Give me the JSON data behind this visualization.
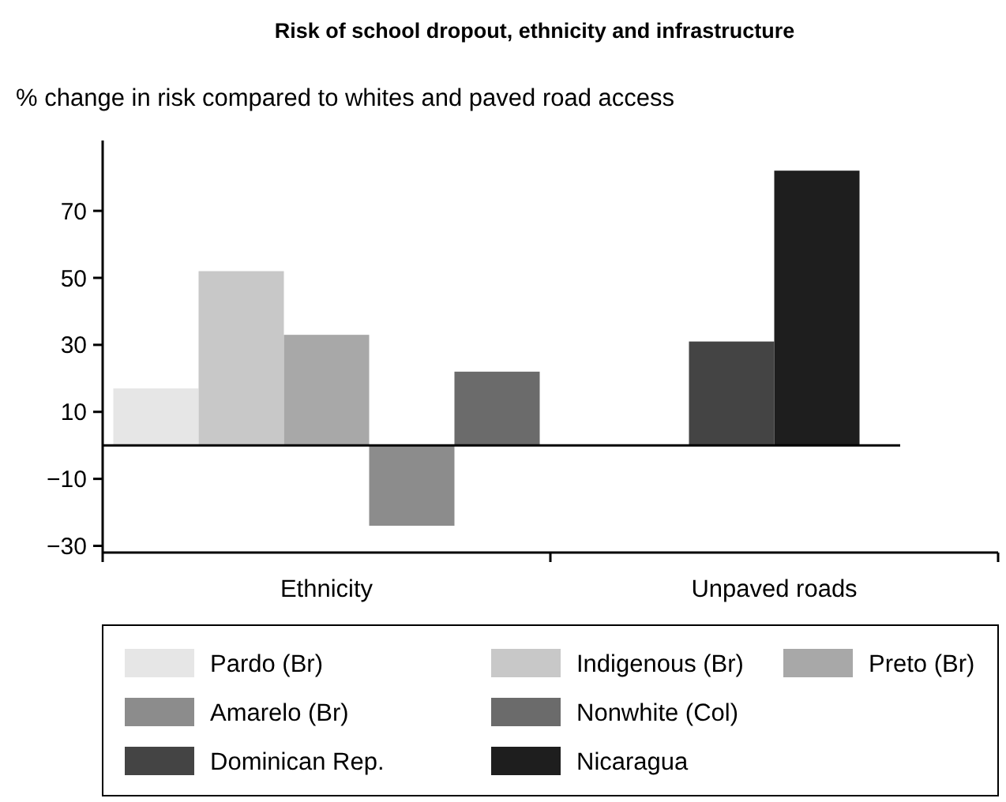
{
  "chart_data": {
    "type": "bar",
    "title": "Risk of school dropout, ethnicity and infrastructure",
    "ylabel": "% change in risk compared to whites and paved road access",
    "categories": [
      "Ethnicity",
      "Unpaved roads"
    ],
    "series": [
      {
        "name": "Pardo (Br)",
        "color": "#e6e6e6",
        "values": [
          17,
          null
        ]
      },
      {
        "name": "Indigenous (Br)",
        "color": "#c8c8c8",
        "values": [
          52,
          null
        ]
      },
      {
        "name": "Preto (Br)",
        "color": "#a8a8a8",
        "values": [
          33,
          null
        ]
      },
      {
        "name": "Amarelo (Br)",
        "color": "#8c8c8c",
        "values": [
          -24,
          null
        ]
      },
      {
        "name": "Nonwhite (Col)",
        "color": "#6b6b6b",
        "values": [
          22,
          null
        ]
      },
      {
        "name": "Dominican Rep.",
        "color": "#444444",
        "values": [
          null,
          31
        ]
      },
      {
        "name": "Nicaragua",
        "color": "#1e1e1e",
        "values": [
          null,
          82
        ]
      }
    ],
    "ylim": [
      -32,
      91
    ],
    "yticks": [
      {
        "value": -30,
        "label": "−30"
      },
      {
        "value": -10,
        "label": "−10"
      },
      10,
      30,
      50,
      70
    ],
    "grid": false,
    "legend": "bottom"
  }
}
